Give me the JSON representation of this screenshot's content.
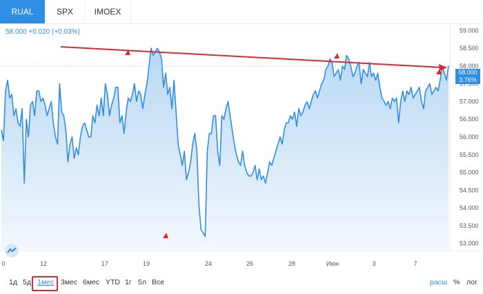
{
  "tabs": [
    {
      "label": "RUAL",
      "active": true
    },
    {
      "label": "SPX",
      "active": false
    },
    {
      "label": "IMOEX",
      "active": false
    }
  ],
  "quote": "58.000  +0.020 (+0.03%)",
  "price_label": {
    "price": "58.000",
    "change": "3.76%"
  },
  "chart_data": {
    "type": "area",
    "y_ticks": [
      "59.000",
      "58.500",
      "58.000",
      "57.500",
      "57.000",
      "56.500",
      "56.000",
      "55.500",
      "55.000",
      "54.500",
      "54.000",
      "53.500",
      "53.000"
    ],
    "ylim": [
      52.8,
      59.2
    ],
    "x_ticks": [
      "0",
      "12",
      "17",
      "19",
      "24",
      "26",
      "28",
      "Июн",
      "3",
      "7"
    ],
    "series": [
      {
        "values": [
          56.2,
          55.9,
          57.3,
          57.6,
          57.1,
          57.2,
          56.6,
          56.8,
          56.4,
          56.3,
          56.8,
          54.7,
          56.5,
          56.0,
          56.9,
          57.0,
          56.6,
          57.3,
          57.3,
          57.0,
          57.1,
          56.9,
          56.6,
          56.8,
          57.0,
          56.4,
          56.0,
          55.8,
          57.5,
          56.7,
          56.6,
          56.2,
          55.3,
          55.8,
          56.0,
          55.4,
          55.7,
          55.5,
          56.0,
          56.3,
          56.4,
          56.2,
          56.0,
          56.0,
          56.6,
          56.4,
          56.9,
          56.6,
          57.1,
          56.6,
          57.5,
          57.2,
          56.6,
          56.9,
          57.1,
          57.4,
          57.4,
          56.4,
          56.6,
          56.1,
          56.7,
          57.1,
          57.0,
          57.2,
          57.5,
          57.0,
          57.3,
          57.2,
          56.8,
          57.2,
          57.5,
          58.0,
          58.5,
          58.3,
          58.4,
          58.5,
          58.4,
          58.2,
          57.4,
          57.8,
          57.2,
          57.4,
          56.8,
          57.6,
          56.7,
          55.8,
          55.5,
          55.2,
          55.6,
          54.8,
          55.0,
          55.3,
          55.8,
          56.1,
          55.6,
          54.1,
          53.4,
          53.3,
          53.2,
          55.6,
          56.1,
          56.1,
          56.6,
          56.6,
          55.6,
          55.2,
          56.6,
          56.5,
          56.8,
          57.0,
          56.6,
          56.2,
          55.8,
          55.5,
          55.3,
          55.2,
          55.6,
          55.2,
          55.0,
          54.9,
          54.9,
          55.0,
          55.2,
          54.8,
          55.1,
          54.8,
          54.9,
          54.7,
          55.0,
          55.3,
          55.2,
          55.4,
          55.6,
          55.8,
          56.0,
          55.8,
          56.2,
          56.4,
          56.4,
          56.6,
          56.5,
          56.7,
          56.3,
          56.8,
          56.6,
          56.7,
          56.9,
          57.0,
          56.8,
          57.0,
          57.2,
          57.3,
          57.1,
          57.3,
          57.5,
          57.6,
          57.9,
          58.0,
          58.2,
          58.1,
          57.7,
          57.8,
          57.9,
          57.6,
          58.0,
          57.9,
          58.3,
          58.2,
          58.0,
          57.7,
          57.8,
          58.0,
          58.1,
          57.5,
          57.9,
          57.8,
          57.7,
          58.1,
          57.7,
          57.8,
          57.6,
          57.8,
          57.4,
          57.1,
          57.0,
          56.9,
          57.0,
          56.8,
          57.1,
          57.0,
          57.1,
          56.4,
          57.0,
          57.3,
          57.0,
          57.3,
          57.2,
          57.4,
          57.1,
          57.2,
          57.3,
          57.4,
          57.0,
          56.8,
          57.3,
          57.4,
          57.5,
          57.2,
          57.3,
          57.4,
          57.3,
          57.6,
          58.0,
          57.8,
          57.6,
          58.0
        ]
      }
    ]
  },
  "periods": [
    "1д",
    "5д",
    "1мес",
    "3мес",
    "6мес",
    "YTD",
    "1г",
    "5л",
    "Все"
  ],
  "active_period": "1мес",
  "right_options": [
    "расш",
    "%",
    "лог"
  ],
  "colors": {
    "accent": "#2f8de4",
    "trendline": "#d9282f"
  }
}
